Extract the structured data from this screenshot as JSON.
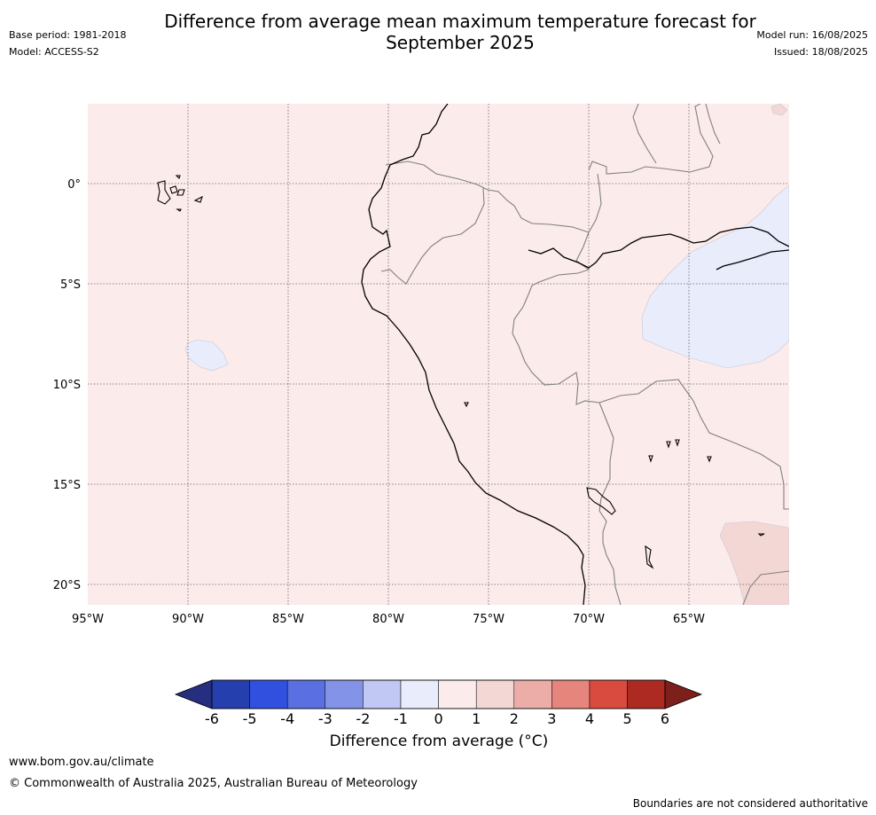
{
  "title": {
    "line1": "Difference from average mean maximum temperature forecast for",
    "line2": "September 2025"
  },
  "meta_left": {
    "base_period": "Base period: 1981-2018",
    "model": "Model: ACCESS-S2"
  },
  "meta_right": {
    "model_run": "Model run: 16/08/2025",
    "issued": "Issued: 18/08/2025"
  },
  "map": {
    "lon_range": [
      -95,
      -60
    ],
    "lat_range": [
      -21,
      4
    ],
    "lon_labels": [
      "95°W",
      "90°W",
      "85°W",
      "80°W",
      "75°W",
      "70°W",
      "65°W"
    ],
    "lat_labels": [
      "0°",
      "5°S",
      "10°S",
      "15°S",
      "20°S"
    ],
    "gridlines": true,
    "background_anomaly_bin": "0 to 1",
    "anomaly_regions": [
      {
        "name": "galapagos-west-cool",
        "bin": "-1 to 0",
        "color": "#e8ecfb"
      },
      {
        "name": "western-amazon-cool",
        "bin": "-1 to 0",
        "color": "#e8ecfb"
      },
      {
        "name": "bolivia-east-warm",
        "bin": "1 to 2",
        "color": "#f2d7d4"
      },
      {
        "name": "northeast-warm",
        "bin": "1 to 2",
        "color": "#f2d7d4"
      }
    ]
  },
  "colorbar": {
    "tick_labels": [
      "-6",
      "-5",
      "-4",
      "-3",
      "-2",
      "-1",
      "0",
      "1",
      "2",
      "3",
      "4",
      "5",
      "6"
    ],
    "colors": [
      "#262e80",
      "#263fae",
      "#3150df",
      "#5a6fe1",
      "#8394e8",
      "#c1c8f4",
      "#e8ecfb",
      "#fcebeb",
      "#f2d7d4",
      "#ecada8",
      "#e6857c",
      "#d94a3f",
      "#ac2a22",
      "#7d1f1a"
    ],
    "label": "Difference from average (°C)"
  },
  "footer": {
    "url": "www.bom.gov.au/climate",
    "copyright": "© Commonwealth of Australia 2025, Australian Bureau of Meteorology",
    "disclaimer": "Boundaries are not considered authoritative"
  }
}
